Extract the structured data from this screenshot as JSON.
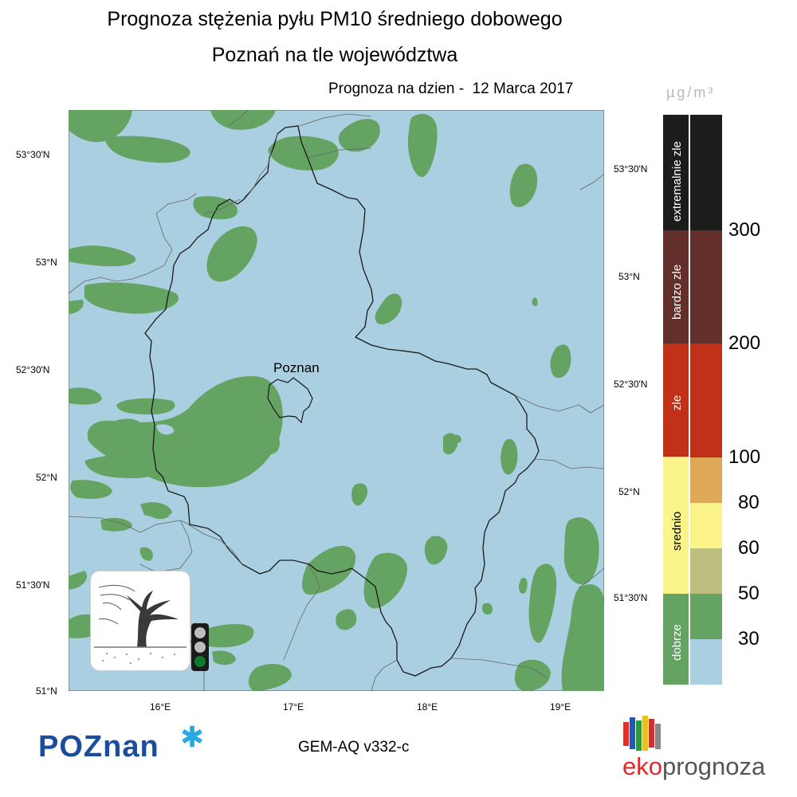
{
  "title_line1": "Prognoza stężenia pyłu PM10 średniego dobowego",
  "title_line2": "Poznań na tle województwa",
  "forecast_date": "Prognoza na dzien -  12 Marca 2017",
  "unit_label": "µg/m³",
  "city_label": "Poznan",
  "lat_labels_left": [
    "53°30'N",
    "53°N",
    "52°30'N",
    "52°N",
    "51°30'N",
    "51°N"
  ],
  "lat_labels_right": [
    "53°30'N",
    "53°N",
    "52°30'N",
    "52°N",
    "51°30'N"
  ],
  "lon_labels": [
    "16°E",
    "17°E",
    "18°E",
    "19°E"
  ],
  "legend": {
    "categories": [
      {
        "label": "extremalnie zle",
        "color": "#1c1c1a"
      },
      {
        "label": "bardzo zle",
        "color": "#632f2a"
      },
      {
        "label": "zle",
        "color": "#bf3219"
      },
      {
        "label": "srednio",
        "color": "#fbf48a"
      },
      {
        "label": "dobrze",
        "color": "#65a363"
      }
    ],
    "scale_colors": [
      "#1c1c1a",
      "#632f2a",
      "#bf3219",
      "#dea957",
      "#fbf48a",
      "#bdbf7e",
      "#65a363",
      "#a9cfe0"
    ],
    "scale_values": [
      "300",
      "200",
      "100",
      "80",
      "60",
      "50",
      "30"
    ]
  },
  "colors": {
    "background_sea": "#a9cfe0",
    "good_green": "#65a363"
  },
  "logo_left": "POZnan",
  "model_label": "GEM-AQ v332-c",
  "logo_right_part1": "eko",
  "logo_right_part2": "prognoza",
  "icons": {
    "panel": "wind-tree-icon",
    "traffic": "traffic-light-icon",
    "snowflake": "asterisk-icon"
  }
}
